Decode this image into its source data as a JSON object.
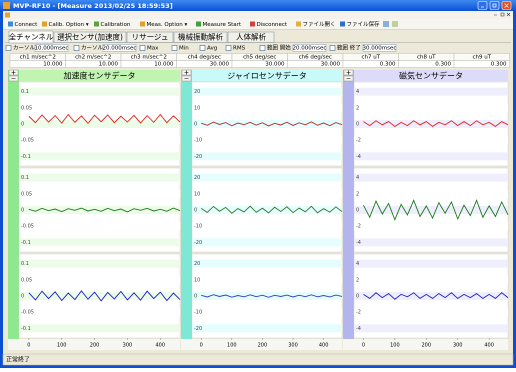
{
  "window": {
    "title": "MVP-RF10 - [Measure 2013/02/25 18:59:53]"
  },
  "toolbar": [
    "Connect",
    "Calib. Option ▾",
    "Calibration",
    "Meas. Option ▾",
    "Measure Start",
    "Disconnect",
    "ファイル開く",
    "ファイル保存"
  ],
  "tabs": [
    "全チャンネル",
    "選択センサ(加速度)",
    "リサージュ",
    "機械振動解析",
    "人体解析"
  ],
  "controls": [
    {
      "label": "カーソル1",
      "field": "10.000msec"
    },
    {
      "label": "カーソル2",
      "field": "20.000msec"
    },
    {
      "label": "Max"
    },
    {
      "label": "Min"
    },
    {
      "label": "Avg"
    },
    {
      "label": "RMS"
    },
    {
      "label": "範囲 開始",
      "field": "20.000msec"
    },
    {
      "label": "範囲 終了",
      "field": "30.000msec"
    }
  ],
  "channels": [
    {
      "name": "ch1 m/sec^2",
      "value": "10.000"
    },
    {
      "name": "ch2 m/sec^2",
      "value": "10.000"
    },
    {
      "name": "ch3 m/sec^2",
      "value": "10.000"
    },
    {
      "name": "ch4 deg/sec",
      "value": "30.000"
    },
    {
      "name": "ch5 deg/sec",
      "value": "30.000"
    },
    {
      "name": "ch6 deg/sec",
      "value": "30.000"
    },
    {
      "name": "ch7 uT",
      "value": "0.300"
    },
    {
      "name": "ch8 uT",
      "value": "0.300"
    },
    {
      "name": "ch9 uT",
      "value": "0.300"
    }
  ],
  "chart_data": [
    {
      "type": "line",
      "title": "加速度センサデータ",
      "x": [
        0,
        20,
        40,
        60,
        80,
        100,
        120,
        140,
        160,
        180,
        200,
        220,
        240,
        260,
        280,
        300,
        320,
        340,
        360,
        380,
        400,
        420,
        440,
        460
      ],
      "xlim": [
        -30,
        460
      ],
      "xticks": [
        0,
        100,
        200,
        300,
        400
      ],
      "ylim": [
        -0.13,
        0.13
      ],
      "yticks": [
        0.1,
        0.05,
        0,
        -0.05,
        -0.1
      ],
      "series": [
        {
          "color": "#e8201c",
          "values": [
            0.024,
            0.004,
            0.028,
            0.006,
            0.026,
            0.003,
            0.029,
            0.005,
            0.025,
            0.002,
            0.027,
            0.007,
            0.028,
            0.004,
            0.024,
            0.006,
            0.027,
            0.003,
            0.026,
            0.005,
            0.029,
            0.004,
            0.025,
            0.006
          ]
        },
        {
          "color": "#1a7a1a",
          "values": [
            0.002,
            -0.004,
            0.005,
            -0.002,
            0.003,
            -0.005,
            0.004,
            -0.001,
            0.006,
            -0.003,
            0.002,
            -0.004,
            0.005,
            -0.002,
            0.003,
            -0.006,
            0.004,
            -0.001,
            0.005,
            -0.003,
            0.002,
            -0.004,
            0.006,
            -0.002
          ]
        },
        {
          "color": "#1a1ad8",
          "values": [
            0.01,
            -0.012,
            0.015,
            -0.008,
            0.013,
            -0.014,
            0.009,
            -0.011,
            0.016,
            -0.01,
            0.012,
            -0.015,
            0.011,
            -0.009,
            0.014,
            -0.012,
            0.01,
            -0.013,
            0.015,
            -0.008,
            0.012,
            -0.014,
            0.009,
            -0.011
          ]
        }
      ]
    },
    {
      "type": "line",
      "title": "ジャイロセンサデータ",
      "x": [
        0,
        20,
        40,
        60,
        80,
        100,
        120,
        140,
        160,
        180,
        200,
        220,
        240,
        260,
        280,
        300,
        320,
        340,
        360,
        380,
        400,
        420,
        440,
        460
      ],
      "xlim": [
        -30,
        460
      ],
      "xticks": [
        0,
        100,
        200,
        300,
        400
      ],
      "ylim": [
        -26,
        26
      ],
      "yticks": [
        20,
        10,
        0,
        -10,
        -20
      ],
      "series": [
        {
          "color": "#c02828",
          "values": [
            0.5,
            -0.8,
            1.2,
            -0.3,
            0.9,
            -1.1,
            0.6,
            -0.4,
            1,
            -0.7,
            0.8,
            -1.2,
            0.4,
            -0.6,
            1.1,
            -0.9,
            0.7,
            -0.5,
            1.3,
            -0.8,
            0.6,
            -1,
            0.9,
            -0.4
          ]
        },
        {
          "color": "#2e7a2e",
          "values": [
            1,
            -1.5,
            2.2,
            -0.8,
            1.6,
            -2,
            0.9,
            -1.2,
            2.4,
            -1.4,
            1.1,
            -1.8,
            1.7,
            -0.9,
            2,
            -1.6,
            1.2,
            -1.1,
            2.3,
            -1.7,
            0.8,
            -1.3,
            1.9,
            -1
          ]
        },
        {
          "color": "#3a3ac0",
          "values": [
            0.4,
            -0.6,
            0.8,
            -0.3,
            0.6,
            -0.7,
            0.3,
            -0.5,
            0.7,
            -0.4,
            0.5,
            -0.8,
            0.4,
            -0.3,
            0.6,
            -0.6,
            0.5,
            -0.4,
            0.7,
            -0.5,
            0.3,
            -0.6,
            0.6,
            -0.3
          ]
        }
      ]
    },
    {
      "type": "line",
      "title": "磁気センサデータ",
      "x": [
        0,
        20,
        40,
        60,
        80,
        100,
        120,
        140,
        160,
        180,
        200,
        220,
        240,
        260,
        280,
        300,
        320,
        340,
        360,
        380,
        400,
        420,
        440,
        460
      ],
      "xlim": [
        -30,
        460
      ],
      "xticks": [
        0,
        100,
        200,
        300,
        400
      ],
      "ylim": [
        -5.2,
        5.2
      ],
      "yticks": [
        4,
        2,
        0,
        -2,
        -4
      ],
      "series": [
        {
          "color": "#e8201c",
          "values": [
            0.3,
            -0.2,
            0.4,
            -0.1,
            0.3,
            -0.3,
            0.2,
            -0.2,
            0.4,
            -0.1,
            0.3,
            -0.3,
            0.2,
            -0.1,
            0.4,
            -0.2,
            0.3,
            -0.2,
            0.4,
            -0.1,
            0.2,
            -0.3,
            0.3,
            -0.1
          ]
        },
        {
          "color": "#1a7a1a",
          "values": [
            0.6,
            -0.9,
            1.1,
            -0.5,
            0.8,
            -1.2,
            0.7,
            -0.6,
            1.2,
            -0.8,
            0.5,
            -1,
            0.9,
            -0.4,
            1,
            -1.1,
            0.6,
            -0.7,
            1.2,
            -0.9,
            0.5,
            -0.8,
            1,
            -0.6
          ]
        },
        {
          "color": "#2020d0",
          "values": [
            0.2,
            -0.3,
            0.4,
            -0.2,
            0.3,
            -0.4,
            0.2,
            -0.1,
            0.4,
            -0.3,
            0.2,
            -0.3,
            0.3,
            -0.2,
            0.4,
            -0.3,
            0.2,
            -0.2,
            0.3,
            -0.3,
            0.2,
            -0.3,
            0.4,
            -0.2
          ]
        }
      ]
    }
  ],
  "status": "正常終了"
}
